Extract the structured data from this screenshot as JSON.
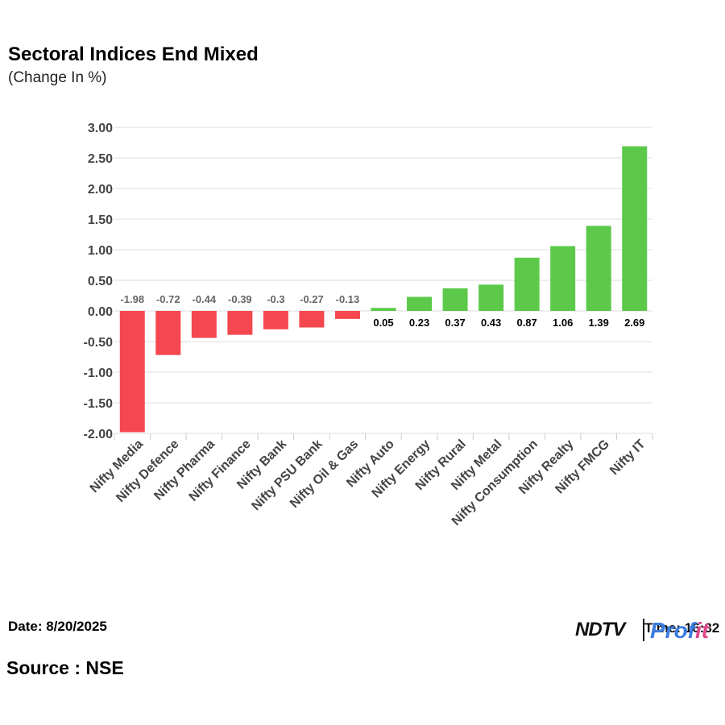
{
  "header": {
    "title": "Sectoral Indices End Mixed",
    "subtitle": "(Change In %)"
  },
  "footer": {
    "date": "Date: 8/20/2025",
    "source": "Source : NSE",
    "time": "Time: 16:32",
    "logo_ndtv": "NDTV",
    "logo_profit_a": "Prof",
    "logo_profit_b": "it"
  },
  "colors": {
    "negative": "#f5474f",
    "positive": "#5cc94a",
    "grid": "#dddddd",
    "axis_text": "#444444",
    "neg_label": "#666666",
    "pos_label": "#000000"
  },
  "chart_data": {
    "type": "bar",
    "title": "Sectoral Indices End Mixed",
    "subtitle": "(Change In %)",
    "xlabel": "",
    "ylabel": "",
    "ylim": [
      -2.0,
      3.0
    ],
    "yticks": [
      3.0,
      2.5,
      2.0,
      1.5,
      1.0,
      0.5,
      0.0,
      -0.5,
      -1.0,
      -1.5,
      -2.0
    ],
    "ytick_labels": [
      "3.00",
      "2.50",
      "2.00",
      "1.50",
      "1.00",
      "0.50",
      "0.00",
      "-0.50",
      "-1.00",
      "-1.50",
      "-2.00"
    ],
    "grid": true,
    "legend": "none",
    "categories": [
      "Nifty Media",
      "Nifty Defence",
      "Nifty Pharma",
      "Nifty Finance",
      "Nifty Bank",
      "Nifty PSU Bank",
      "Nifty Oil & Gas",
      "Nifty Auto",
      "Nifty Energy",
      "Nifty Rural",
      "Nifty Metal",
      "Nifty Consumption",
      "Nifty Realty",
      "Nifty FMCG",
      "Nifty IT"
    ],
    "values": [
      -1.98,
      -0.72,
      -0.44,
      -0.39,
      -0.3,
      -0.27,
      -0.13,
      0.05,
      0.23,
      0.37,
      0.43,
      0.87,
      1.06,
      1.39,
      2.69
    ],
    "value_labels": [
      "-1.98",
      "-0.72",
      "-0.44",
      "-0.39",
      "-0.3",
      "-0.27",
      "-0.13",
      "0.05",
      "0.23",
      "0.37",
      "0.43",
      "0.87",
      "1.06",
      "1.39",
      "2.69"
    ]
  }
}
